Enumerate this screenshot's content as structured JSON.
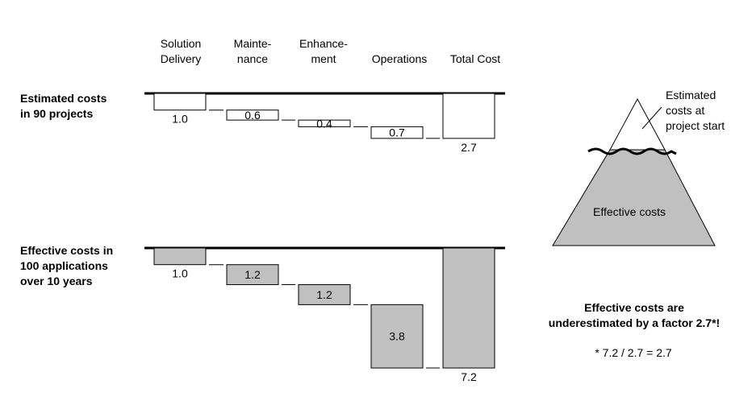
{
  "chart_data": {
    "type": "bar",
    "subtype": "waterfall",
    "categories": [
      "Solution Delivery",
      "Mainte- nance",
      "Enhance- ment",
      "Operations",
      "Total Cost"
    ],
    "header_lines": [
      [
        "Solution",
        "Delivery"
      ],
      [
        "Mainte-",
        "nance"
      ],
      [
        "Enhance-",
        "ment"
      ],
      [
        "Operations"
      ],
      [
        "Total Cost"
      ]
    ],
    "series": [
      {
        "label_lines": [
          "Estimated costs",
          "in 90 projects"
        ],
        "values": [
          1.0,
          0.6,
          0.4,
          0.7,
          2.7
        ],
        "value_labels": [
          "1.0",
          "0.6",
          "0.4",
          "0.7",
          "2.7"
        ],
        "color": "#ffffff"
      },
      {
        "label_lines": [
          "Effective costs in",
          "100 applications",
          "over 10 years"
        ],
        "values": [
          1.0,
          1.2,
          1.2,
          3.8,
          7.2
        ],
        "value_labels": [
          "1.0",
          "1.2",
          "1.2",
          "3.8",
          "7.2"
        ],
        "color": "#c0c0c0"
      }
    ]
  },
  "iceberg": {
    "tip_label_lines": [
      "Estimated",
      "costs at",
      "project start"
    ],
    "body_label": "Effective costs",
    "body_color": "#c0c0c0"
  },
  "conclusion": {
    "lines": [
      "Effective costs are",
      "underestimated by a factor 2.7*!"
    ],
    "formula": "* 7.2  / 2.7 = 2.7"
  }
}
